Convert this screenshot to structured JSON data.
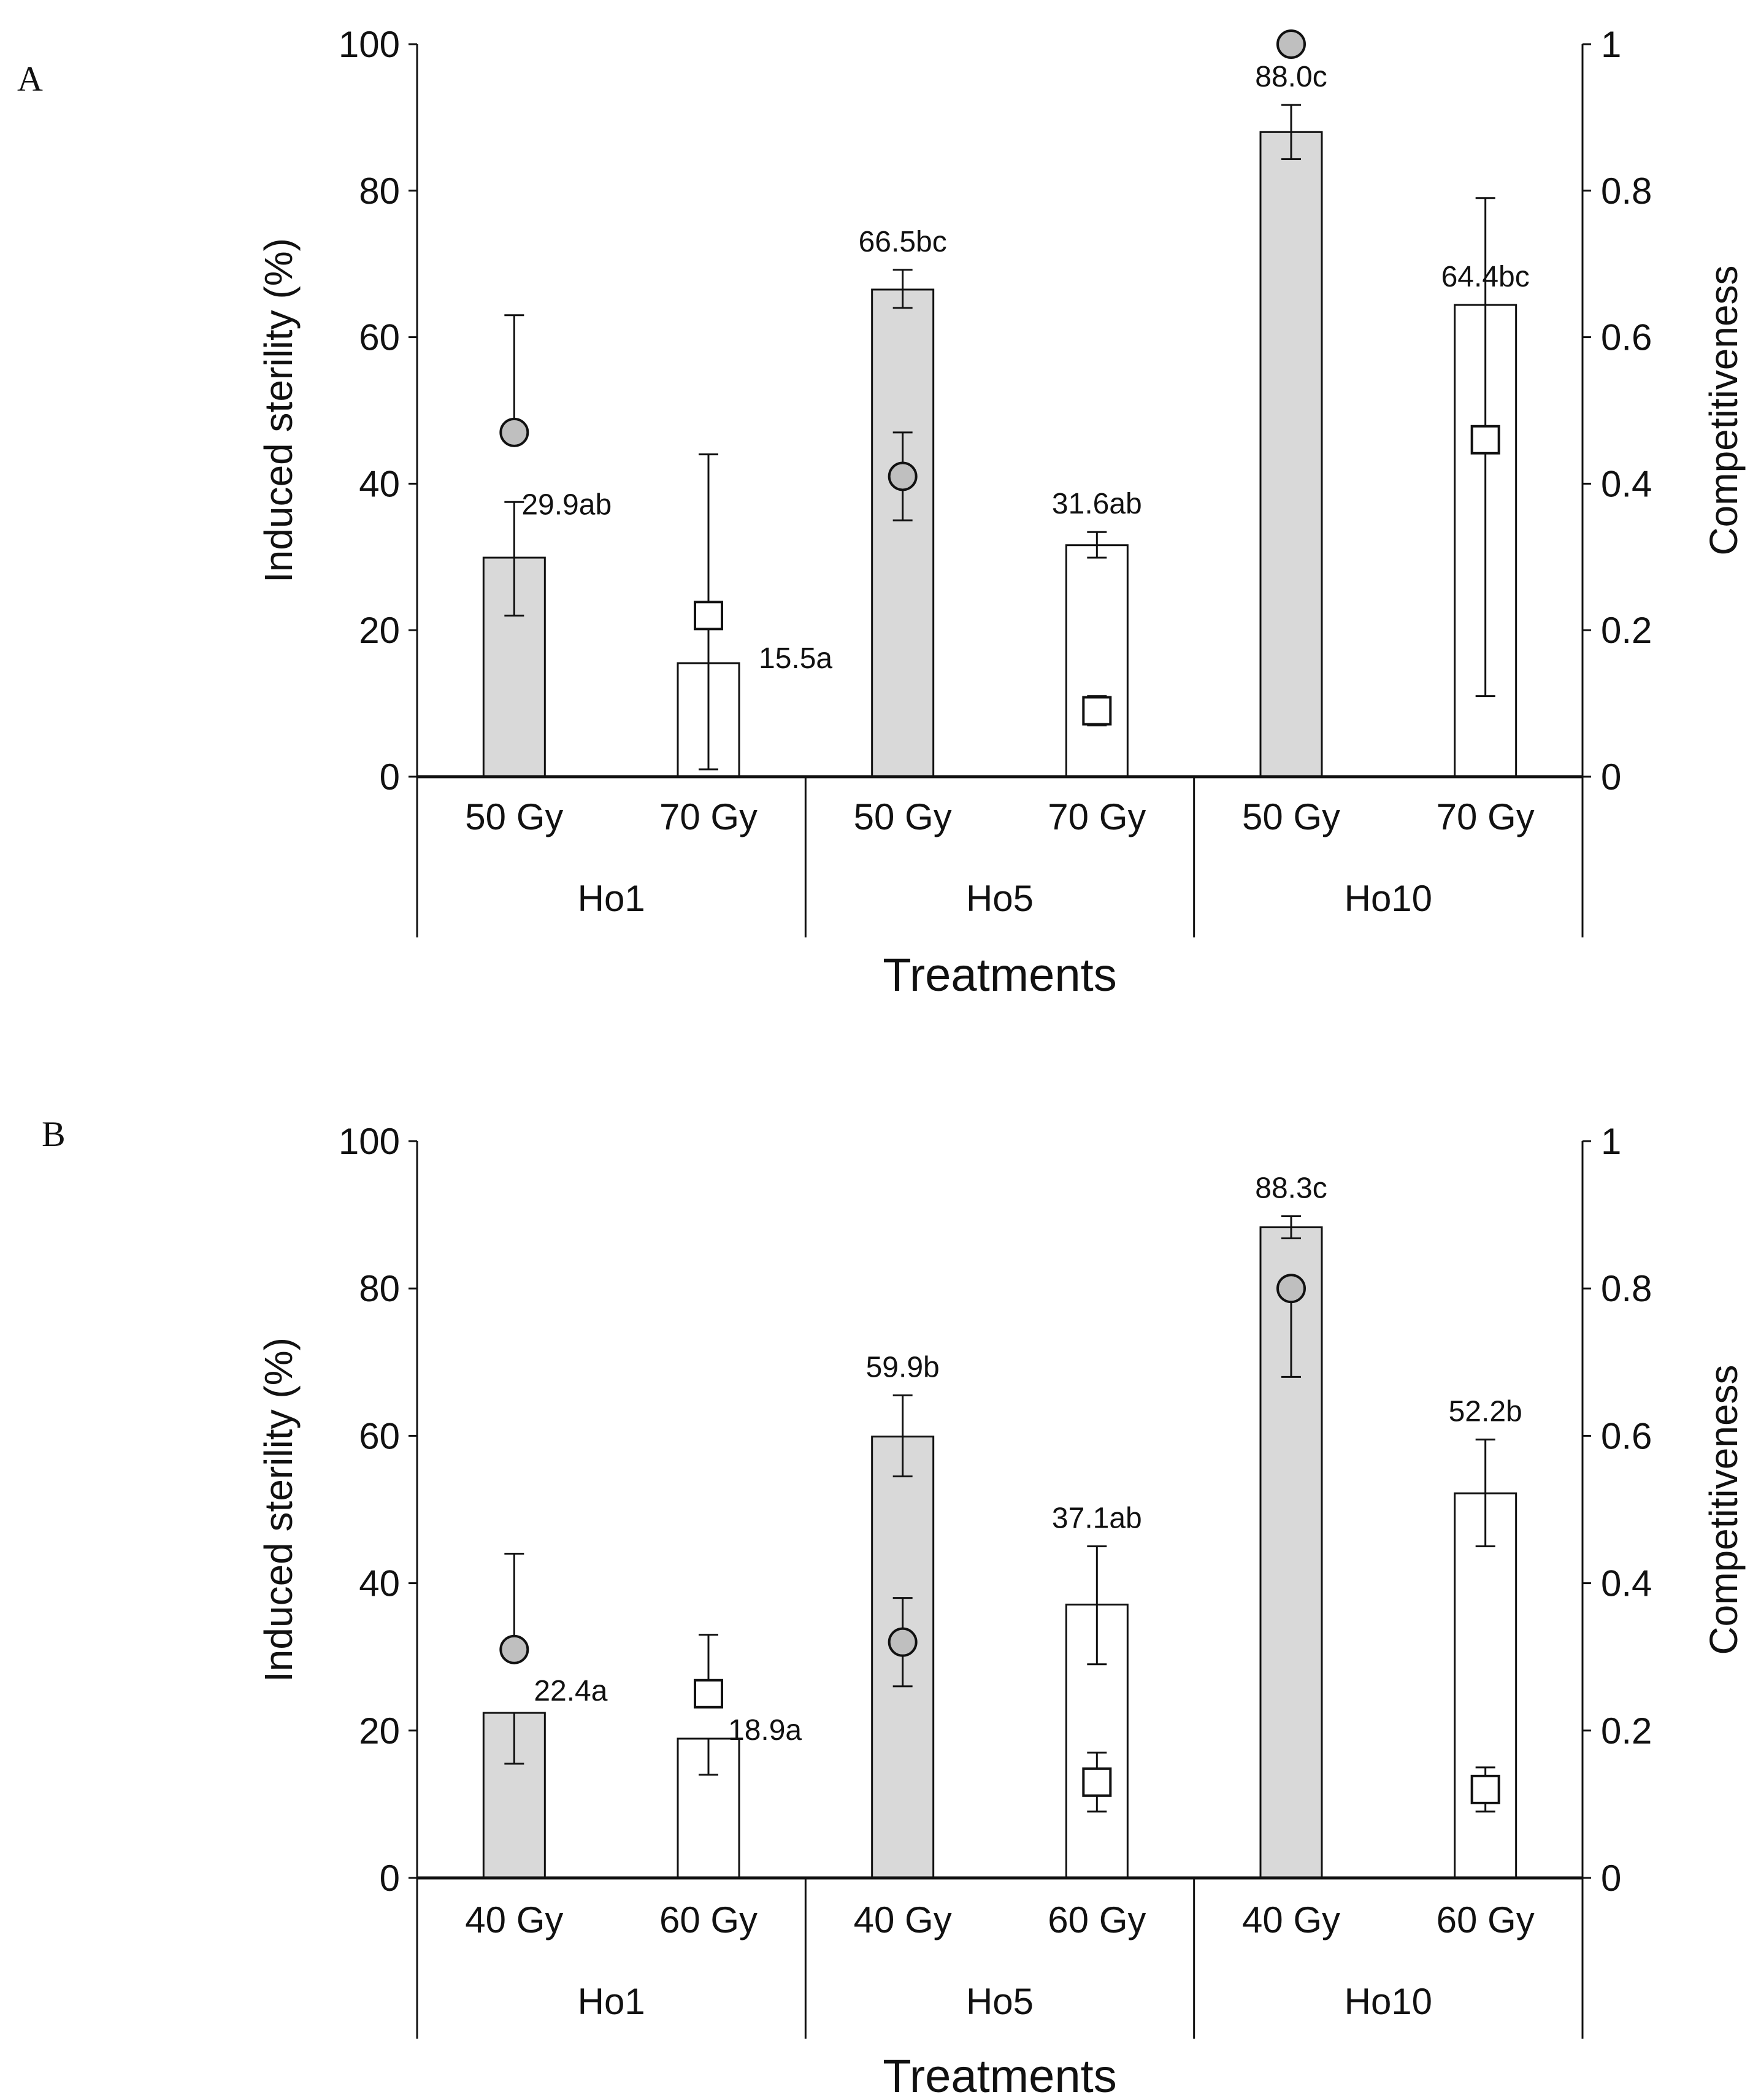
{
  "colors": {
    "filled_bar": "#d9d9d9",
    "open_bar": "#ffffff",
    "filled_marker": "#bfbfbf",
    "open_marker": "#ffffff",
    "ink": "#111111"
  },
  "chart_data": [
    {
      "panel": "A",
      "type": "bar",
      "xlabel": "Treatments",
      "ylabel": "Induced sterility (%)",
      "ylabel_right": "Competitiveness",
      "ylim": [
        0,
        100
      ],
      "ylim_right": [
        0,
        1
      ],
      "yticks": [
        "0",
        "20",
        "40",
        "60",
        "80",
        "100"
      ],
      "yticks_right": [
        "0",
        "0.2",
        "0.4",
        "0.6",
        "0.8",
        "1"
      ],
      "groups": [
        "Ho1",
        "Ho5",
        "Ho10"
      ],
      "categories": [
        "50 Gy",
        "70 Gy",
        "50 Gy",
        "70 Gy",
        "50 Gy",
        "70 Gy"
      ],
      "bars": [
        {
          "group": "Ho1",
          "dose": "50 Gy",
          "fill": "grey",
          "value": 29.9,
          "lo": 22.0,
          "hi": 37.5,
          "label": "29.9ab"
        },
        {
          "group": "Ho1",
          "dose": "70 Gy",
          "fill": "white",
          "value": 15.5,
          "lo": 15.5,
          "hi": 15.5,
          "label": "15.5a"
        },
        {
          "group": "Ho5",
          "dose": "50 Gy",
          "fill": "grey",
          "value": 66.5,
          "lo": 64.0,
          "hi": 69.2,
          "label": "66.5bc"
        },
        {
          "group": "Ho5",
          "dose": "70 Gy",
          "fill": "white",
          "value": 31.6,
          "lo": 29.9,
          "hi": 33.4,
          "label": "31.6ab"
        },
        {
          "group": "Ho10",
          "dose": "50 Gy",
          "fill": "grey",
          "value": 88.0,
          "lo": 84.3,
          "hi": 91.7,
          "label": "88.0c"
        },
        {
          "group": "Ho10",
          "dose": "70 Gy",
          "fill": "white",
          "value": 64.4,
          "lo": 64.4,
          "hi": 64.4,
          "label": "64.4bc"
        }
      ],
      "competitiveness": [
        {
          "group": "Ho1",
          "dose": "50 Gy",
          "marker": "circle",
          "value": 0.47,
          "lo": 0.47,
          "hi": 0.63
        },
        {
          "group": "Ho1",
          "dose": "70 Gy",
          "marker": "square",
          "value": 0.22,
          "lo": 0.01,
          "hi": 0.44
        },
        {
          "group": "Ho5",
          "dose": "50 Gy",
          "marker": "circle",
          "value": 0.41,
          "lo": 0.35,
          "hi": 0.47
        },
        {
          "group": "Ho5",
          "dose": "70 Gy",
          "marker": "square",
          "value": 0.09,
          "lo": 0.07,
          "hi": 0.11
        },
        {
          "group": "Ho10",
          "dose": "50 Gy",
          "marker": "circle",
          "value": 1.0,
          "lo": 1.0,
          "hi": 1.0
        },
        {
          "group": "Ho10",
          "dose": "70 Gy",
          "marker": "square",
          "value": 0.46,
          "lo": 0.11,
          "hi": 0.79
        }
      ]
    },
    {
      "panel": "B",
      "type": "bar",
      "xlabel": "Treatments",
      "ylabel": "Induced sterility (%)",
      "ylabel_right": "Competitiveness",
      "ylim": [
        0,
        100
      ],
      "ylim_right": [
        0,
        1
      ],
      "yticks": [
        "0",
        "20",
        "40",
        "60",
        "80",
        "100"
      ],
      "yticks_right": [
        "0",
        "0.2",
        "0.4",
        "0.6",
        "0.8",
        "1"
      ],
      "groups": [
        "Ho1",
        "Ho5",
        "Ho10"
      ],
      "categories": [
        "40 Gy",
        "60 Gy",
        "40 Gy",
        "60 Gy",
        "40 Gy",
        "60 Gy"
      ],
      "bars": [
        {
          "group": "Ho1",
          "dose": "40 Gy",
          "fill": "grey",
          "value": 22.4,
          "lo": 15.5,
          "hi": 22.4,
          "label": "22.4a"
        },
        {
          "group": "Ho1",
          "dose": "60 Gy",
          "fill": "white",
          "value": 18.9,
          "lo": 14.0,
          "hi": 18.9,
          "label": "18.9a"
        },
        {
          "group": "Ho5",
          "dose": "40 Gy",
          "fill": "grey",
          "value": 59.9,
          "lo": 54.5,
          "hi": 65.5,
          "label": "59.9b"
        },
        {
          "group": "Ho5",
          "dose": "60 Gy",
          "fill": "white",
          "value": 37.1,
          "lo": 29.0,
          "hi": 45.0,
          "label": "37.1ab"
        },
        {
          "group": "Ho10",
          "dose": "40 Gy",
          "fill": "grey",
          "value": 88.3,
          "lo": 86.8,
          "hi": 89.8,
          "label": "88.3c"
        },
        {
          "group": "Ho10",
          "dose": "60 Gy",
          "fill": "white",
          "value": 52.2,
          "lo": 45.0,
          "hi": 59.5,
          "label": "52.2b"
        }
      ],
      "competitiveness": [
        {
          "group": "Ho1",
          "dose": "40 Gy",
          "marker": "circle",
          "value": 0.31,
          "lo": 0.31,
          "hi": 0.44
        },
        {
          "group": "Ho1",
          "dose": "60 Gy",
          "marker": "square",
          "value": 0.25,
          "lo": 0.25,
          "hi": 0.33
        },
        {
          "group": "Ho5",
          "dose": "40 Gy",
          "marker": "circle",
          "value": 0.32,
          "lo": 0.26,
          "hi": 0.38
        },
        {
          "group": "Ho5",
          "dose": "60 Gy",
          "marker": "square",
          "value": 0.13,
          "lo": 0.09,
          "hi": 0.17
        },
        {
          "group": "Ho10",
          "dose": "40 Gy",
          "marker": "circle",
          "value": 0.8,
          "lo": 0.68,
          "hi": 0.8
        },
        {
          "group": "Ho10",
          "dose": "60 Gy",
          "marker": "square",
          "value": 0.12,
          "lo": 0.09,
          "hi": 0.15
        }
      ]
    }
  ]
}
